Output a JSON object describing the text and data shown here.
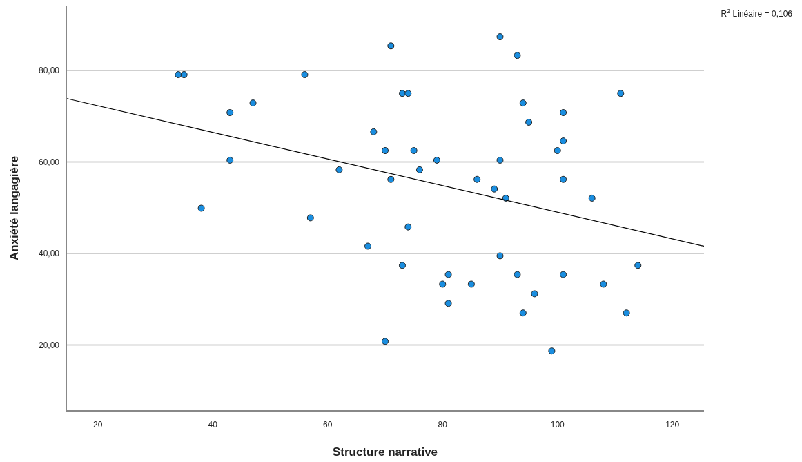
{
  "chart_data": {
    "type": "scatter",
    "xlabel": "Structure narrative",
    "ylabel": "Anxiété langagière",
    "annotations": [
      "R$^{2}$ Linéaire = 0,106"
    ],
    "xlim": [
      14.5,
      125.5
    ],
    "xticks": [
      20,
      40,
      60,
      80,
      100,
      120
    ],
    "ylim": [
      5.6,
      94.2
    ],
    "yticks": [
      {
        "value": 20,
        "label": "20,00"
      },
      {
        "value": 40,
        "label": "40,00"
      },
      {
        "value": 60,
        "label": "60,00"
      },
      {
        "value": 80,
        "label": "80,00"
      }
    ],
    "grid": "y",
    "series": [
      {
        "color": "#1a8ee0",
        "marker": "circle",
        "x": [
          34,
          35,
          56,
          71,
          43,
          47,
          68,
          70,
          43,
          62,
          71,
          38,
          57,
          67,
          70,
          90,
          93,
          73,
          74,
          111,
          94,
          101,
          95,
          101,
          75,
          100,
          79,
          90,
          76,
          86,
          101,
          89,
          91,
          106,
          74,
          90,
          73,
          114,
          81,
          93,
          101,
          80,
          85,
          108,
          96,
          81,
          94,
          112,
          99
        ],
        "values": [
          79.1,
          79.1,
          79.1,
          85.4,
          70.8,
          72.9,
          66.6,
          62.5,
          60.4,
          58.3,
          56.2,
          49.9,
          47.8,
          41.6,
          20.8,
          87.4,
          83.3,
          75.0,
          75.0,
          75.0,
          72.9,
          70.8,
          68.7,
          64.6,
          62.5,
          62.5,
          60.4,
          60.4,
          58.3,
          56.2,
          56.2,
          54.1,
          52.1,
          52.1,
          45.8,
          39.5,
          37.4,
          37.4,
          35.4,
          35.4,
          35.4,
          33.3,
          33.3,
          33.3,
          31.2,
          29.1,
          27.0,
          27.0,
          18.7
        ]
      },
      {
        "type": "line",
        "color": "#000000",
        "marker": "none",
        "x": [
          14.5,
          125.5
        ],
        "values": [
          73.9,
          41.6
        ]
      }
    ]
  }
}
